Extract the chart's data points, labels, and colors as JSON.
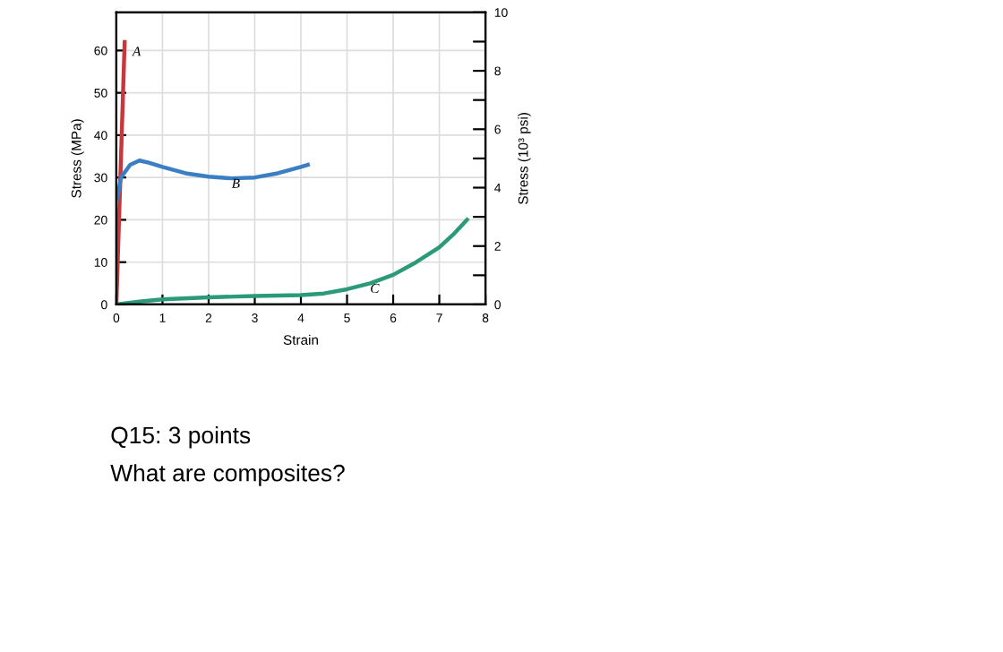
{
  "chart_data": {
    "type": "line",
    "xlabel": "Strain",
    "ylabel": "Stress (MPa)",
    "y2label": "Stress (10³ psi)",
    "xlim": [
      0,
      8
    ],
    "xticks": [
      0,
      1,
      2,
      3,
      4,
      5,
      6,
      7,
      8
    ],
    "ylim": [
      0,
      69
    ],
    "yticks": [
      0,
      10,
      20,
      30,
      40,
      50,
      60
    ],
    "y2lim": [
      0,
      10
    ],
    "y2ticks": [
      0,
      {
        "value": 1,
        "label": null
      },
      2,
      {
        "value": 3,
        "label": null
      },
      4,
      {
        "value": 5,
        "label": null
      },
      6,
      {
        "value": 7,
        "label": null
      },
      8,
      {
        "value": 9,
        "label": null
      },
      10
    ],
    "grid": true,
    "legend": false,
    "line_style": "solid",
    "marker": "none",
    "series": [
      {
        "color": "#c8373b",
        "x": [
          0,
          0.18
        ],
        "values": [
          0,
          62
        ]
      },
      {
        "color": "#3a7fc4",
        "x": [
          0.02,
          0.1,
          0.3,
          0.5,
          0.7,
          1,
          1.5,
          2,
          2.5,
          3,
          3.5,
          4,
          4.15
        ],
        "values": [
          25,
          30,
          33,
          34,
          33.5,
          32.5,
          31,
          30.2,
          29.8,
          30,
          31,
          32.5,
          33
        ]
      },
      {
        "color": "#2a9a78",
        "x": [
          0,
          0.5,
          1,
          2,
          3,
          4,
          4.5,
          5,
          5.5,
          6,
          6.5,
          7,
          7.3,
          7.6
        ],
        "values": [
          0,
          0.7,
          1.2,
          1.7,
          2,
          2.2,
          2.6,
          3.6,
          5,
          7,
          10,
          13.5,
          16.5,
          20
        ]
      }
    ],
    "annotations": [
      {
        "text": "A",
        "x": 0.35,
        "y": 61
      },
      {
        "text": "B",
        "x": 2.5,
        "y": 29.8
      },
      {
        "text": "C",
        "x": 5.5,
        "y": 5
      },
      "Q15: 3 points",
      "What are composites?"
    ]
  }
}
